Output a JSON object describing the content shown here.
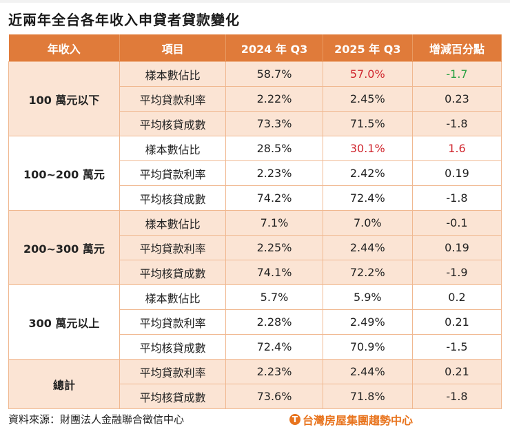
{
  "title": "近兩年全台各年收入申貸者貸款變化",
  "headers": [
    "年收入",
    "項目",
    "2024 年 Q3",
    "2025 年 Q3",
    "增減百分點"
  ],
  "groups": [
    {
      "income": "100 萬元以下",
      "rows": [
        {
          "item": "樣本數佔比",
          "y2024": "58.7%",
          "y2025": "57.0%",
          "change": "-1.7",
          "y2025_color": "red",
          "change_color": "green"
        },
        {
          "item": "平均貸款利率",
          "y2024": "2.22%",
          "y2025": "2.45%",
          "change": "0.23"
        },
        {
          "item": "平均核貸成數",
          "y2024": "73.3%",
          "y2025": "71.5%",
          "change": "-1.8"
        }
      ]
    },
    {
      "income": "100~200 萬元",
      "rows": [
        {
          "item": "樣本數佔比",
          "y2024": "28.5%",
          "y2025": "30.1%",
          "change": "1.6",
          "y2025_color": "red",
          "change_color": "red"
        },
        {
          "item": "平均貸款利率",
          "y2024": "2.23%",
          "y2025": "2.42%",
          "change": "0.19"
        },
        {
          "item": "平均核貸成數",
          "y2024": "74.2%",
          "y2025": "72.4%",
          "change": "-1.8"
        }
      ]
    },
    {
      "income": "200~300 萬元",
      "rows": [
        {
          "item": "樣本數佔比",
          "y2024": "7.1%",
          "y2025": "7.0%",
          "change": "-0.1"
        },
        {
          "item": "平均貸款利率",
          "y2024": "2.25%",
          "y2025": "2.44%",
          "change": "0.19"
        },
        {
          "item": "平均核貸成數",
          "y2024": "74.1%",
          "y2025": "72.2%",
          "change": "-1.9"
        }
      ]
    },
    {
      "income": "300 萬元以上",
      "rows": [
        {
          "item": "樣本數佔比",
          "y2024": "5.7%",
          "y2025": "5.9%",
          "change": "0.2"
        },
        {
          "item": "平均貸款利率",
          "y2024": "2.28%",
          "y2025": "2.49%",
          "change": "0.21"
        },
        {
          "item": "平均核貸成數",
          "y2024": "72.4%",
          "y2025": "70.9%",
          "change": "-1.5"
        }
      ]
    },
    {
      "income": "總計",
      "rows": [
        {
          "item": "平均貸款利率",
          "y2024": "2.23%",
          "y2025": "2.44%",
          "change": "0.21"
        },
        {
          "item": "平均核貸成數",
          "y2024": "73.6%",
          "y2025": "71.8%",
          "change": "-1.8"
        }
      ]
    }
  ],
  "footer": {
    "source": "資料來源：財團法人金融聯合徵信中心",
    "logo": "台灣房屋集團趨勢中心"
  },
  "colors": {
    "header": "#e07b3a",
    "band": "#fbe4d4",
    "red": "#d0262e",
    "green": "#27a040"
  }
}
